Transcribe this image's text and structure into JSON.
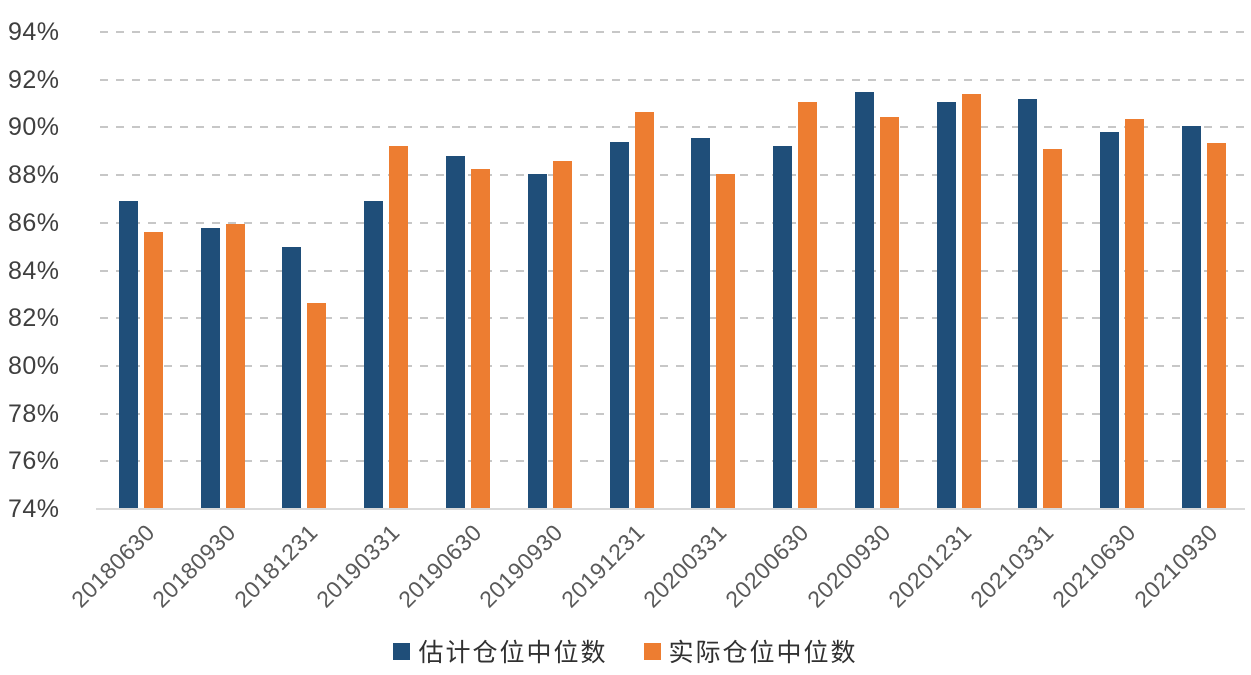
{
  "chart_data": {
    "type": "bar",
    "title": "",
    "categories": [
      "20180630",
      "20180930",
      "20181231",
      "20190331",
      "20190630",
      "20190930",
      "20191231",
      "20200331",
      "20200630",
      "20200930",
      "20201231",
      "20210331",
      "20210630",
      "20210930"
    ],
    "series": [
      {
        "name": "估计仓位中位数",
        "color": "#1F4E79",
        "values": [
          86.9,
          85.8,
          85.0,
          86.9,
          88.8,
          88.05,
          89.4,
          89.55,
          89.2,
          91.5,
          91.05,
          91.2,
          89.8,
          90.05
        ]
      },
      {
        "name": "实际仓位中位数",
        "color": "#ED7D31",
        "values": [
          85.6,
          85.95,
          82.65,
          89.2,
          88.25,
          88.6,
          90.65,
          88.05,
          91.05,
          90.45,
          91.4,
          89.1,
          90.35,
          89.35
        ]
      }
    ],
    "ylim": [
      74,
      94
    ],
    "ytick_step": 2,
    "ytick_labels": [
      "94%",
      "92%",
      "90%",
      "88%",
      "86%",
      "84%",
      "82%",
      "80%",
      "78%",
      "76%",
      "74%"
    ],
    "xlabel": "",
    "ylabel": "",
    "grid": "horizontal-dashed",
    "legend_position": "bottom-center"
  },
  "style_colors": {
    "gridline": "#c7c7c7",
    "axis_line": "#d9d9d9",
    "ytick_text": "#3f3f3f",
    "xtick_text": "#595959",
    "legend_text": "#303030",
    "background": "#ffffff"
  }
}
